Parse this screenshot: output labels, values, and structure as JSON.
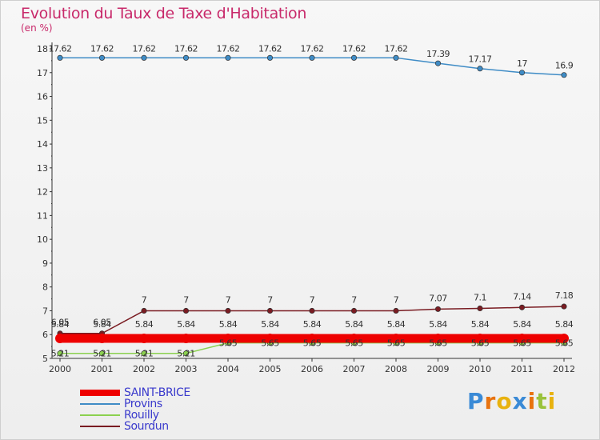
{
  "header": {
    "title": "Evolution du Taux de Taxe d'Habitation",
    "unit": "(en %)"
  },
  "logo": {
    "text": "Proxiti"
  },
  "chart_data": {
    "type": "line",
    "title": "Evolution du Taux de Taxe d'Habitation",
    "ylabel": "(en %)",
    "xlabel": "",
    "x": [
      "2000",
      "2001",
      "2002",
      "2003",
      "2004",
      "2005",
      "2006",
      "2007",
      "2008",
      "2009",
      "2010",
      "2011",
      "2012"
    ],
    "ylim": [
      5,
      18
    ],
    "yticks": [
      "5",
      "6",
      "7",
      "8",
      "9",
      "10",
      "11",
      "12",
      "13",
      "14",
      "15",
      "16",
      "17",
      "18"
    ],
    "grid": false,
    "legend_position": "bottom-left",
    "series": [
      {
        "name": "SAINT-BRICE",
        "color": "#ee0000",
        "values": [
          5.84,
          5.84,
          5.84,
          5.84,
          5.84,
          5.84,
          5.84,
          5.84,
          5.84,
          5.84,
          5.84,
          5.84,
          5.84
        ],
        "labels": [
          "5.84",
          "5.84",
          "5.84",
          "5.84",
          "5.84",
          "5.84",
          "5.84",
          "5.84",
          "5.84",
          "5.84",
          "5.84",
          "5.84",
          "5.84"
        ]
      },
      {
        "name": "Provins",
        "color": "#3f8cc6",
        "values": [
          17.62,
          17.62,
          17.62,
          17.62,
          17.62,
          17.62,
          17.62,
          17.62,
          17.62,
          17.39,
          17.17,
          17,
          16.9
        ],
        "labels": [
          "17.62",
          "17.62",
          "17.62",
          "17.62",
          "17.62",
          "17.62",
          "17.62",
          "17.62",
          "17.62",
          "17.39",
          "17.17",
          "17",
          "16.9"
        ]
      },
      {
        "name": "Rouilly",
        "color": "#8bd14f",
        "values": [
          5.21,
          5.21,
          5.21,
          5.21,
          5.65,
          5.65,
          5.65,
          5.65,
          5.65,
          5.65,
          5.65,
          5.65,
          5.65
        ],
        "labels": [
          "5.21",
          "5.21",
          "5.21",
          "5.21",
          "5.65",
          "5.65",
          "5.65",
          "5.65",
          "5.65",
          "5.65",
          "5.65",
          "5.65",
          "5.65"
        ]
      },
      {
        "name": "Sourdun",
        "color": "#7a1c22",
        "values": [
          6.05,
          6.05,
          7,
          7,
          7,
          7,
          7,
          7,
          7,
          7.07,
          7.1,
          7.14,
          7.18
        ],
        "labels": [
          "6.05",
          "6.05",
          "7",
          "7",
          "7",
          "7",
          "7",
          "7",
          "7",
          "7.07",
          "7.1",
          "7.14",
          "7.18"
        ]
      }
    ]
  }
}
